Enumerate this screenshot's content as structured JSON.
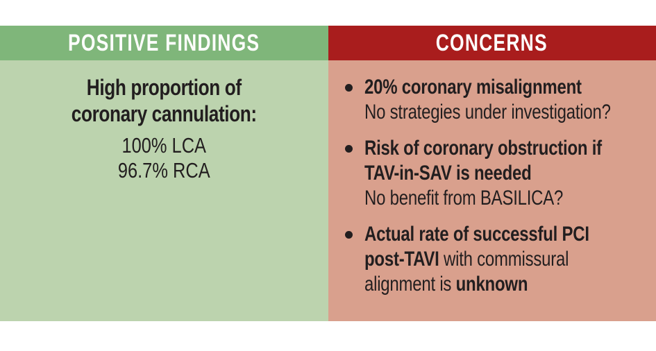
{
  "left_panel": {
    "header": "POSITIVE FINDINGS",
    "heading_lines": [
      "High proportion of",
      "coronary cannulation:"
    ],
    "value_lines": [
      "100% LCA",
      "96.7% RCA"
    ]
  },
  "right_panel": {
    "header": "CONCERNS",
    "bullets": [
      {
        "lines": [
          {
            "segments": [
              {
                "text": "20% coronary misalignment",
                "bold": true
              }
            ]
          },
          {
            "segments": [
              {
                "text": "No strategies under investigation?",
                "bold": false
              }
            ]
          }
        ]
      },
      {
        "lines": [
          {
            "segments": [
              {
                "text": "Risk of coronary obstruction if",
                "bold": true
              }
            ]
          },
          {
            "segments": [
              {
                "text": "TAV-in-SAV is needed",
                "bold": true
              }
            ]
          },
          {
            "segments": [
              {
                "text": "No benefit from BASILICA?",
                "bold": false
              }
            ]
          }
        ]
      },
      {
        "lines": [
          {
            "segments": [
              {
                "text": "Actual rate of successful PCI",
                "bold": true
              }
            ]
          },
          {
            "segments": [
              {
                "text": "post-TAVI",
                "bold": true
              },
              {
                "text": " with commissural",
                "bold": false
              }
            ]
          },
          {
            "segments": [
              {
                "text": "alignment is ",
                "bold": false
              },
              {
                "text": "unknown",
                "bold": true
              }
            ]
          }
        ]
      }
    ]
  },
  "colors": {
    "positive_header_bg": "#7fb67a",
    "positive_body_bg": "#bcd3ae",
    "concerns_header_bg": "#a91d1d",
    "concerns_body_bg": "#d9a08d",
    "header_text": "#fdfdfc",
    "body_text": "#221e1f",
    "page_bg": "#ffffff"
  }
}
